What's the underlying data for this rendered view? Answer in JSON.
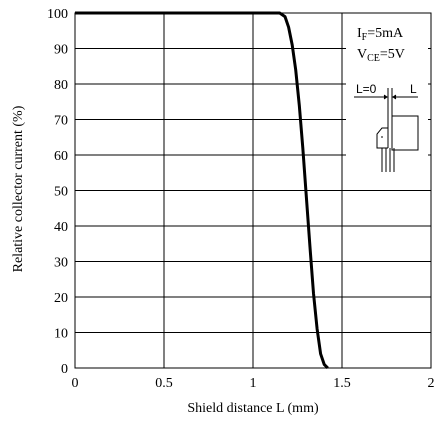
{
  "chart_data": {
    "type": "line",
    "title": "",
    "xlabel": "Shield distance L (mm)",
    "ylabel": "Relative collector current (%)",
    "xlim": [
      0,
      2
    ],
    "ylim": [
      0,
      100
    ],
    "xticks": [
      "0",
      "0.5",
      "1",
      "1.5",
      "2"
    ],
    "yticks": [
      "0",
      "10",
      "20",
      "30",
      "40",
      "50",
      "60",
      "70",
      "80",
      "90",
      "100"
    ],
    "grid": true,
    "series": [
      {
        "x": [
          0,
          1.1,
          1.15,
          1.18,
          1.2,
          1.22,
          1.24,
          1.26,
          1.28,
          1.3,
          1.32,
          1.34,
          1.36,
          1.38,
          1.4,
          1.42
        ],
        "y": [
          100,
          100,
          100,
          99,
          96,
          91,
          84,
          74,
          62,
          48,
          34,
          21,
          11,
          4,
          1,
          0
        ]
      }
    ],
    "annotations": {
      "if_main": "I",
      "if_sub": "F",
      "if_rest": "=5mA",
      "vce_main": "V",
      "vce_sub": "CE",
      "vce_rest": "=5V",
      "l0": "L=0",
      "l": "L"
    }
  }
}
